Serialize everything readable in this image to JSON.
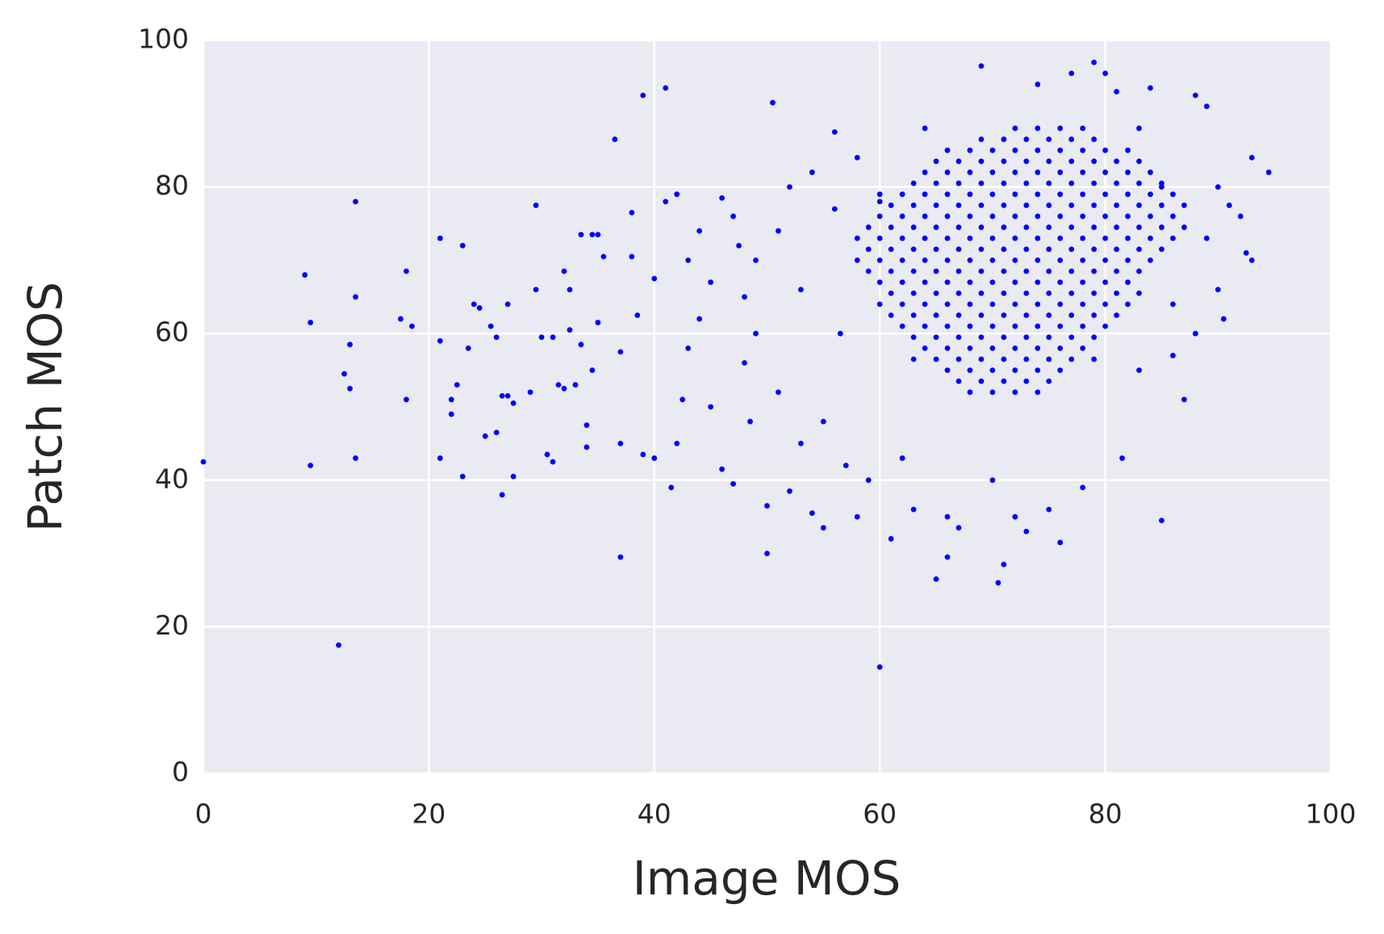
{
  "chart_data": {
    "type": "scatter",
    "xlabel": "Image MOS",
    "ylabel": "Patch MOS",
    "color": "#0000ff",
    "grid": true,
    "xlim": [
      0,
      100
    ],
    "ylim": [
      0,
      100
    ],
    "xticks": [
      0,
      20,
      40,
      60,
      80,
      100
    ],
    "yticks": [
      0,
      20,
      40,
      60,
      80,
      100
    ],
    "x": [
      0,
      9,
      9.5,
      9.5,
      12,
      12.5,
      13,
      13,
      13.5,
      13.5,
      13.5,
      17.5,
      18,
      18,
      18.5,
      21,
      21,
      21,
      22,
      22,
      22.5,
      23,
      23,
      23.5,
      24,
      24.5,
      25,
      25.5,
      26,
      26,
      26.5,
      26.5,
      27,
      27,
      27.5,
      27.5,
      29,
      29.5,
      29.5,
      30,
      30.5,
      31,
      31,
      31.5,
      32,
      32,
      32.5,
      32.5,
      33,
      33.5,
      33.5,
      34,
      34,
      34.5,
      34.5,
      35,
      35,
      35.5,
      36.5,
      37,
      37,
      37,
      38,
      38,
      38.5,
      39,
      39,
      40,
      40,
      41,
      41,
      41.5,
      42,
      42,
      42.5,
      43,
      43,
      44,
      44,
      45,
      45,
      46,
      46,
      47,
      47,
      47.5,
      48,
      48,
      48.5,
      49,
      49,
      50,
      50,
      50.5,
      51,
      51,
      52,
      52,
      53,
      53,
      54,
      54,
      55,
      55,
      56,
      56,
      56.5,
      57,
      58,
      58,
      59,
      60,
      60,
      61,
      62,
      63,
      64,
      65,
      66,
      66,
      67,
      69,
      70,
      70.5,
      71,
      72,
      73,
      74,
      75,
      76,
      77,
      78,
      79,
      80,
      81,
      81.5,
      83,
      83,
      84,
      85,
      85,
      86,
      86,
      87,
      88,
      88,
      89,
      89,
      90,
      90,
      90.5,
      91,
      92,
      92.5,
      93,
      93,
      94.5,
      72,
      74,
      76,
      78,
      69,
      71,
      73,
      75,
      77,
      79,
      66,
      68,
      70,
      72,
      74,
      76,
      78,
      80,
      82,
      65,
      67,
      69,
      71,
      73,
      75,
      77,
      79,
      81,
      83,
      64,
      66,
      68,
      70,
      72,
      74,
      76,
      78,
      80,
      82,
      84,
      63,
      65,
      67,
      69,
      71,
      73,
      75,
      77,
      79,
      81,
      83,
      85,
      60,
      62,
      64,
      66,
      68,
      70,
      72,
      74,
      76,
      78,
      80,
      82,
      84,
      86,
      61,
      63,
      65,
      67,
      69,
      71,
      73,
      75,
      77,
      79,
      81,
      83,
      85,
      87,
      60,
      62,
      64,
      66,
      68,
      70,
      72,
      74,
      76,
      78,
      80,
      82,
      84,
      86,
      59,
      61,
      63,
      65,
      67,
      69,
      71,
      73,
      75,
      77,
      79,
      81,
      83,
      85,
      87,
      58,
      60,
      62,
      64,
      66,
      68,
      70,
      72,
      74,
      76,
      78,
      80,
      82,
      84,
      86,
      59,
      61,
      63,
      65,
      67,
      69,
      71,
      73,
      75,
      77,
      79,
      81,
      83,
      85,
      58,
      60,
      62,
      64,
      66,
      68,
      70,
      72,
      74,
      76,
      78,
      80,
      82,
      84,
      59,
      61,
      63,
      65,
      67,
      69,
      71,
      73,
      75,
      77,
      79,
      81,
      83,
      60,
      62,
      64,
      66,
      68,
      70,
      72,
      74,
      76,
      78,
      80,
      82,
      61,
      63,
      65,
      67,
      69,
      71,
      73,
      75,
      77,
      79,
      81,
      83,
      60,
      62,
      64,
      66,
      68,
      70,
      72,
      74,
      76,
      78,
      80,
      82,
      61,
      63,
      65,
      67,
      69,
      71,
      73,
      75,
      77,
      79,
      81,
      62,
      64,
      66,
      68,
      70,
      72,
      74,
      76,
      78,
      80,
      63,
      65,
      67,
      69,
      71,
      73,
      75,
      77,
      79,
      64,
      66,
      68,
      70,
      72,
      74,
      76,
      78,
      63,
      65,
      67,
      69,
      71,
      73,
      75,
      77,
      79,
      66,
      68,
      70,
      72,
      74,
      76,
      67,
      69,
      71,
      73,
      75,
      68,
      70,
      72,
      74
    ],
    "values": [
      42.5,
      68,
      61.5,
      42,
      17.5,
      54.5,
      52.5,
      58.5,
      78,
      65,
      43,
      62,
      68.5,
      51,
      61,
      73,
      59,
      43,
      49,
      51,
      53,
      72,
      40.5,
      58,
      64,
      63.5,
      46,
      61,
      59.5,
      46.5,
      51.5,
      38,
      51.5,
      64,
      40.5,
      50.5,
      52,
      66,
      77.5,
      59.5,
      43.5,
      42.5,
      59.5,
      53,
      68.5,
      52.5,
      66,
      60.5,
      53,
      73.5,
      58.5,
      47.5,
      44.5,
      73.5,
      55,
      73.5,
      61.5,
      70.5,
      86.5,
      29.5,
      57.5,
      45,
      76.5,
      70.5,
      62.5,
      92.5,
      43.5,
      67.5,
      43,
      93.5,
      78,
      39,
      79,
      45,
      51,
      70,
      58,
      74,
      62,
      50,
      67,
      78.5,
      41.5,
      76,
      39.5,
      72,
      65,
      56,
      48,
      70,
      60,
      30,
      36.5,
      91.5,
      74,
      52,
      80,
      38.5,
      66,
      45,
      82,
      35.5,
      33.5,
      48,
      87.5,
      77,
      60,
      42,
      35,
      84,
      40,
      14.5,
      78,
      32,
      43,
      36,
      88,
      26.5,
      29.5,
      35,
      33.5,
      96.5,
      40,
      26,
      28.5,
      35,
      33,
      94,
      36,
      31.5,
      95.5,
      39,
      97,
      95.5,
      93,
      43,
      88,
      55,
      93.5,
      34.5,
      80,
      57,
      64,
      51,
      92.5,
      60,
      91,
      73,
      80,
      66,
      62,
      77.5,
      76,
      71,
      84,
      70,
      82,
      88,
      88,
      88,
      88,
      86.5,
      86.5,
      86.5,
      86.5,
      86.5,
      86.5,
      85,
      85,
      85,
      85,
      85,
      85,
      85,
      85,
      85,
      83.5,
      83.5,
      83.5,
      83.5,
      83.5,
      83.5,
      83.5,
      83.5,
      83.5,
      83.5,
      82,
      82,
      82,
      82,
      82,
      82,
      82,
      82,
      82,
      82,
      82,
      80.5,
      80.5,
      80.5,
      80.5,
      80.5,
      80.5,
      80.5,
      80.5,
      80.5,
      80.5,
      80.5,
      80.5,
      79,
      79,
      79,
      79,
      79,
      79,
      79,
      79,
      79,
      79,
      79,
      79,
      79,
      79,
      77.5,
      77.5,
      77.5,
      77.5,
      77.5,
      77.5,
      77.5,
      77.5,
      77.5,
      77.5,
      77.5,
      77.5,
      77.5,
      77.5,
      76,
      76,
      76,
      76,
      76,
      76,
      76,
      76,
      76,
      76,
      76,
      76,
      76,
      76,
      74.5,
      74.5,
      74.5,
      74.5,
      74.5,
      74.5,
      74.5,
      74.5,
      74.5,
      74.5,
      74.5,
      74.5,
      74.5,
      74.5,
      74.5,
      73,
      73,
      73,
      73,
      73,
      73,
      73,
      73,
      73,
      73,
      73,
      73,
      73,
      73,
      73,
      71.5,
      71.5,
      71.5,
      71.5,
      71.5,
      71.5,
      71.5,
      71.5,
      71.5,
      71.5,
      71.5,
      71.5,
      71.5,
      71.5,
      70,
      70,
      70,
      70,
      70,
      70,
      70,
      70,
      70,
      70,
      70,
      70,
      70,
      70,
      68.5,
      68.5,
      68.5,
      68.5,
      68.5,
      68.5,
      68.5,
      68.5,
      68.5,
      68.5,
      68.5,
      68.5,
      68.5,
      67,
      67,
      67,
      67,
      67,
      67,
      67,
      67,
      67,
      67,
      67,
      67,
      65.5,
      65.5,
      65.5,
      65.5,
      65.5,
      65.5,
      65.5,
      65.5,
      65.5,
      65.5,
      65.5,
      65.5,
      64,
      64,
      64,
      64,
      64,
      64,
      64,
      64,
      64,
      64,
      64,
      64,
      62.5,
      62.5,
      62.5,
      62.5,
      62.5,
      62.5,
      62.5,
      62.5,
      62.5,
      62.5,
      62.5,
      61,
      61,
      61,
      61,
      61,
      61,
      61,
      61,
      61,
      61,
      59.5,
      59.5,
      59.5,
      59.5,
      59.5,
      59.5,
      59.5,
      59.5,
      59.5,
      58,
      58,
      58,
      58,
      58,
      58,
      58,
      58,
      56.5,
      56.5,
      56.5,
      56.5,
      56.5,
      56.5,
      56.5,
      56.5,
      56.5,
      55,
      55,
      55,
      55,
      55,
      55,
      53.5,
      53.5,
      53.5,
      53.5,
      53.5,
      52,
      52,
      52,
      52
    ]
  }
}
